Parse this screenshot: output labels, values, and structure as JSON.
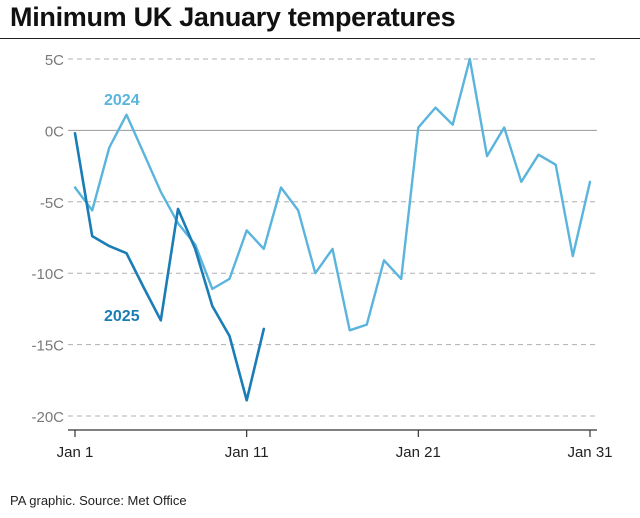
{
  "title": "Minimum UK January temperatures",
  "source": "PA graphic. Source: Met Office",
  "colors": {
    "series_2024": "#5ab4dc",
    "series_2025": "#1a7db5",
    "grid": "#b0b0b0",
    "zero_line": "#9a9a9a",
    "tick_label": "#7a7a7a",
    "axis": "#333333"
  },
  "chart_data": {
    "type": "line",
    "title": "Minimum UK January temperatures",
    "xlabel": "",
    "ylabel": "",
    "xlim": [
      1,
      31
    ],
    "ylim": [
      -20,
      5
    ],
    "x_ticks": [
      1,
      11,
      21,
      31
    ],
    "x_tick_labels": [
      "Jan 1",
      "Jan 11",
      "Jan 21",
      "Jan 31"
    ],
    "y_ticks": [
      5,
      0,
      -5,
      -10,
      -15,
      -20
    ],
    "y_tick_labels": [
      "5C",
      "0C",
      "-5C",
      "-10C",
      "-15C",
      "-20C"
    ],
    "grid": "horizontal dashed",
    "legend": "inline labels",
    "series": [
      {
        "name": "2024",
        "x": [
          1,
          2,
          3,
          4,
          5,
          6,
          7,
          8,
          9,
          10,
          11,
          12,
          13,
          14,
          15,
          16,
          17,
          18,
          19,
          20,
          21,
          22,
          23,
          24,
          25,
          26,
          27,
          28,
          29,
          30,
          31
        ],
        "values": [
          -4,
          -5.6,
          -1.2,
          1.1,
          -1.6,
          -4.3,
          -6.5,
          -8,
          -11.1,
          -10.4,
          -7,
          -8.3,
          -4,
          -5.6,
          -10,
          -8.3,
          -14,
          -13.6,
          -9.1,
          -10.4,
          0.2,
          1.6,
          0.4,
          5,
          -1.8,
          0.2,
          -3.6,
          -1.7,
          -2.4,
          -8.8,
          -3.6
        ]
      },
      {
        "name": "2025",
        "x": [
          1,
          2,
          3,
          4,
          5,
          6,
          7,
          8,
          9,
          10,
          11,
          12
        ],
        "values": [
          -0.2,
          -7.4,
          -8.1,
          -8.6,
          -11,
          -13.3,
          -5.5,
          -8.3,
          -12.3,
          -14.4,
          -18.9,
          -13.9
        ]
      }
    ]
  }
}
